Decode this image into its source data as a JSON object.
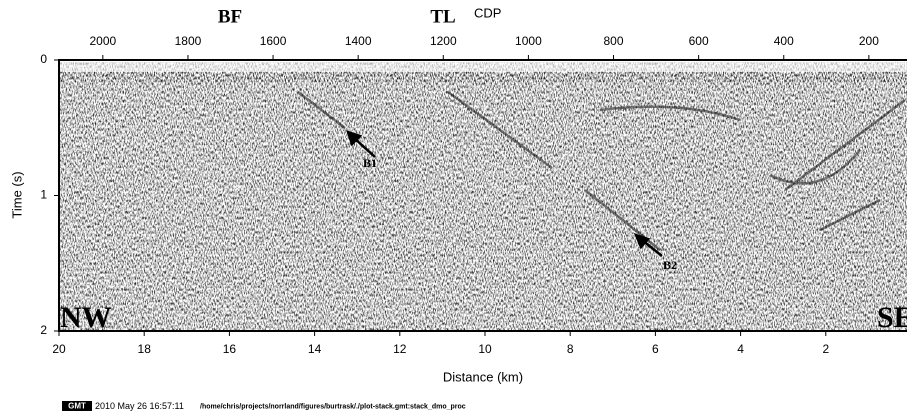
{
  "chart_data": {
    "type": "seismic-section",
    "xlabel": "Distance (km)",
    "ylabel": "Time (s)",
    "x2label": "CDP",
    "xlim": [
      20,
      0
    ],
    "xticks": [
      20,
      18,
      16,
      14,
      12,
      10,
      8,
      6,
      4,
      2
    ],
    "x2lim": [
      2103,
      101
    ],
    "x2ticks": [
      2000,
      1800,
      1600,
      1400,
      1200,
      1000,
      800,
      600,
      400,
      200
    ],
    "ylim": [
      2,
      0
    ],
    "yticks": [
      0,
      1,
      2
    ],
    "annotations": {
      "bf": "BF",
      "tl": "TL",
      "b1": "B1",
      "b2": "B2",
      "nw": "NW",
      "se": "SE"
    },
    "footer": {
      "logo": "GMT",
      "timestamp": "2010 May 26 16:57:11",
      "command": "/home/chris/projects/norrland/figures/burtrask/./plot-stack.gmt:stack_dmo_proc"
    }
  }
}
